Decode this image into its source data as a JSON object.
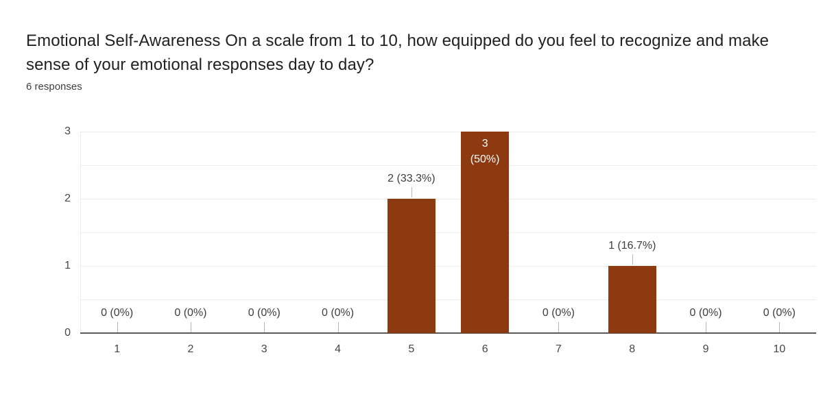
{
  "chart_data": {
    "type": "bar",
    "title": "Emotional Self-Awareness On a scale from 1 to 10, how equipped do you feel to recognize and make sense of your emotional responses day to day?",
    "subtitle": "6 responses",
    "categories": [
      "1",
      "2",
      "3",
      "4",
      "5",
      "6",
      "7",
      "8",
      "9",
      "10"
    ],
    "values": [
      0,
      0,
      0,
      0,
      2,
      3,
      0,
      1,
      0,
      0
    ],
    "bar_labels": [
      "0 (0%)",
      "0 (0%)",
      "0 (0%)",
      "0 (0%)",
      "2 (33.3%)",
      "3 (50%)",
      "0 (0%)",
      "1 (16.7%)",
      "0 (0%)",
      "0 (0%)"
    ],
    "label_placement": [
      "axis",
      "axis",
      "axis",
      "axis",
      "above",
      "inside",
      "axis",
      "above",
      "axis",
      "axis"
    ],
    "inside_label_lines": [
      "3",
      "(50%)"
    ],
    "y_ticks": [
      0,
      1,
      2,
      3
    ],
    "ylim": [
      0,
      3
    ],
    "xlabel": "",
    "ylabel": "",
    "legend": "none",
    "grid": true,
    "gridline_step": 0.5,
    "colors": {
      "bar": "#8e3a10",
      "inside_label_text": "#ffffff",
      "gridline": "#ebebeb",
      "axis_line": "#5a5a5a",
      "tick_label": "#464646",
      "value_label": "#3d3d3d",
      "whisker": "#b5b5b5",
      "title_text": "#212121",
      "subtitle_text": "#3c4043"
    }
  }
}
